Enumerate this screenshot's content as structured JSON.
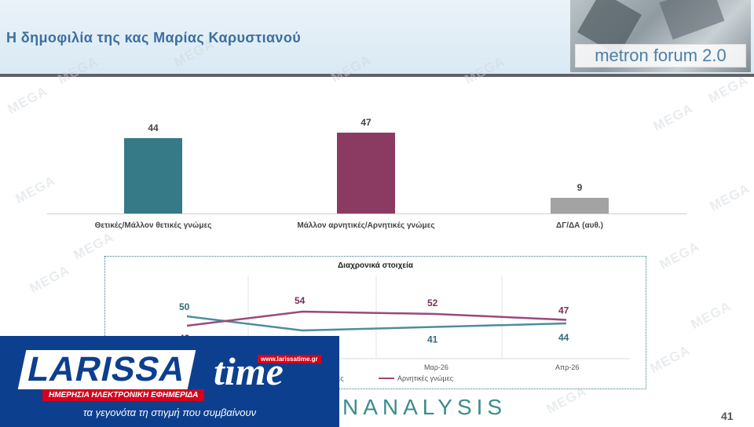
{
  "page": {
    "title": "Η δημοφιλία της κας Μαρίας Καρυστιανού",
    "logo_text": "metron forum 2.0",
    "watermark": "MEGA",
    "page_number": "41",
    "brand_text": "NANALYSIS",
    "overlay": {
      "word": "LARISSA",
      "time": "time",
      "url": "www.larissatime.gr",
      "subtitle": "ΗΜΕΡΗΣΙΑ ΗΛΕΚΤΡΟΝΙΚΗ ΕΦΗΜΕΡΙΔΑ",
      "tagline": "τα γεγονότα τη στιγμή που συμβαίνουν"
    }
  },
  "chart_data": [
    {
      "type": "bar",
      "title": "",
      "xlabel": "",
      "ylabel": "",
      "categories": [
        "Θετικές/Μάλλον θετικές γνώμες",
        "Μάλλον αρνητικές/Αρνητικές γνώμες",
        "ΔΓ/ΔΑ (αυθ.)"
      ],
      "values": [
        44,
        47,
        9
      ],
      "colors": [
        "#367a88",
        "#8b3a61",
        "#a3a3a3"
      ],
      "ylim": [
        0,
        50
      ],
      "grid": false
    },
    {
      "type": "line",
      "title": "Διαχρονικά στοιχεία",
      "categories": [
        "",
        "",
        "Μαρ-26",
        "Απρ-26"
      ],
      "series": [
        {
          "name": "γνώμες",
          "values": [
            50,
            38,
            41,
            44
          ],
          "color": "#4a8f9c"
        },
        {
          "name": "Αρνητικές γνώμες",
          "values": [
            42,
            54,
            52,
            47
          ],
          "color": "#9a4a78"
        }
      ],
      "legend_position": "bottom",
      "grid": true
    }
  ]
}
